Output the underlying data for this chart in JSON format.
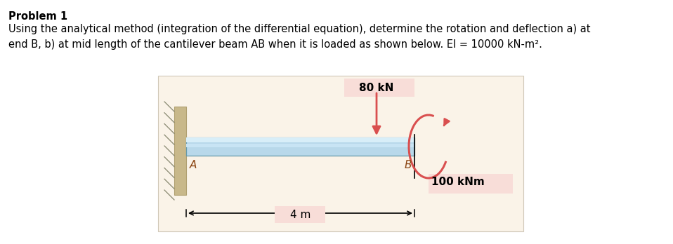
{
  "title_bold": "Problem 1",
  "title_normal": "Using the analytical method (integration of the differential equation), determine the rotation and deflection a) at\nend B, b) at mid length of the cantilever beam AB when it is loaded as shown below. EI = 10000 kN-m².",
  "bg_color": "#ffffff",
  "diagram_bg": "#faf3e8",
  "label_80kN": "80 kN",
  "label_100kNm": "100 kNm",
  "label_A": "A",
  "label_B": "B",
  "label_4m": "4 m",
  "load_color": "#d94f4f",
  "moment_color": "#d94f4f",
  "beam_face": "#b8d8ea",
  "beam_edge": "#6699aa",
  "wall_face": "#c8b88a",
  "wall_edge": "#b0a070"
}
